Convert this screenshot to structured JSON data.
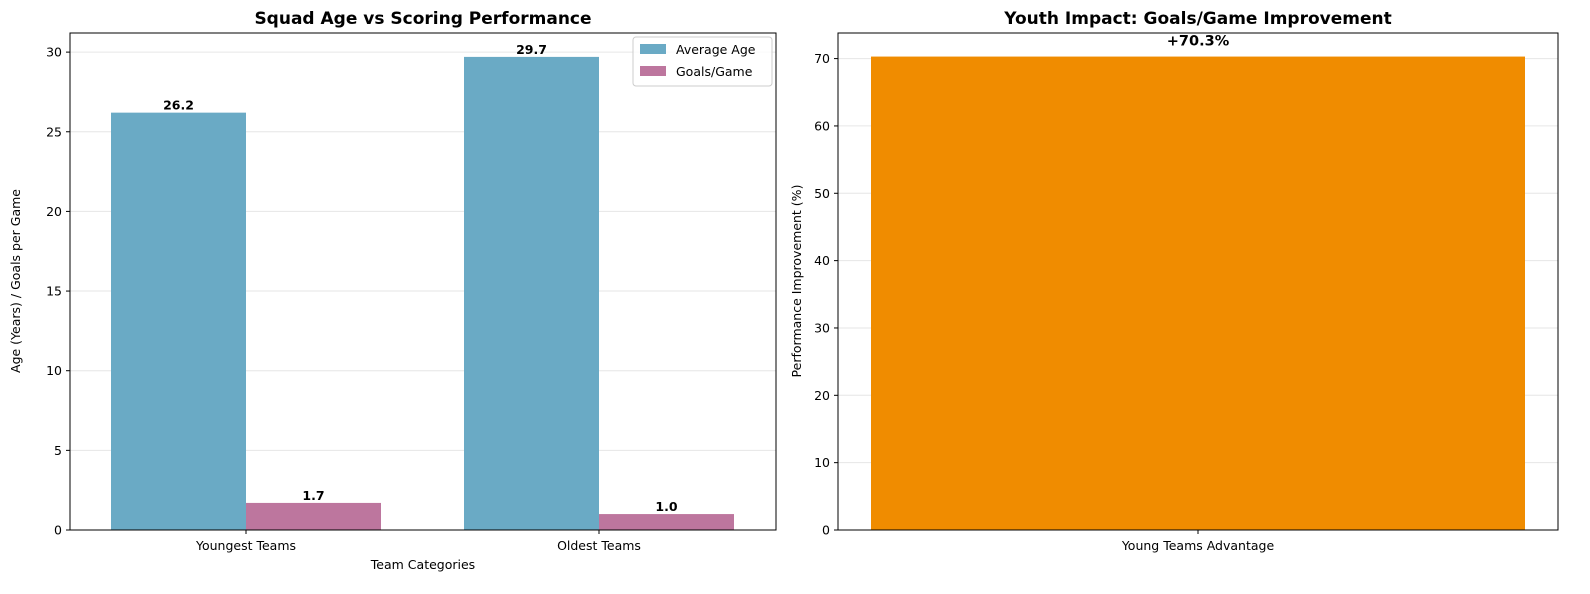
{
  "chart_data": [
    {
      "type": "bar",
      "title": "Squad Age vs Scoring Performance",
      "xlabel": "Team Categories",
      "ylabel": "Age (Years) / Goals per Game",
      "categories": [
        "Youngest Teams",
        "Oldest Teams"
      ],
      "series": [
        {
          "name": "Average Age",
          "values": [
            26.2,
            29.7
          ],
          "labels": [
            "26.2",
            "29.7"
          ],
          "color": "#6aaac5"
        },
        {
          "name": "Goals/Game",
          "values": [
            1.7,
            1.0
          ],
          "labels": [
            "1.7",
            "1.0"
          ],
          "color": "#bd769e"
        }
      ],
      "ylim": [
        0,
        31.2
      ],
      "yticks": [
        0,
        5,
        10,
        15,
        20,
        25,
        30
      ],
      "grid": true,
      "legend": "top-right"
    },
    {
      "type": "bar",
      "title": "Youth Impact: Goals/Game Improvement",
      "xlabel": "",
      "ylabel": "Performance Improvement (%)",
      "categories": [
        "Young Teams Advantage"
      ],
      "values": [
        70.3
      ],
      "labels": [
        "+70.3%"
      ],
      "color": "#f08c00",
      "ylim": [
        0,
        73.8
      ],
      "yticks": [
        0,
        10,
        20,
        30,
        40,
        50,
        60,
        70
      ],
      "grid": true
    }
  ]
}
